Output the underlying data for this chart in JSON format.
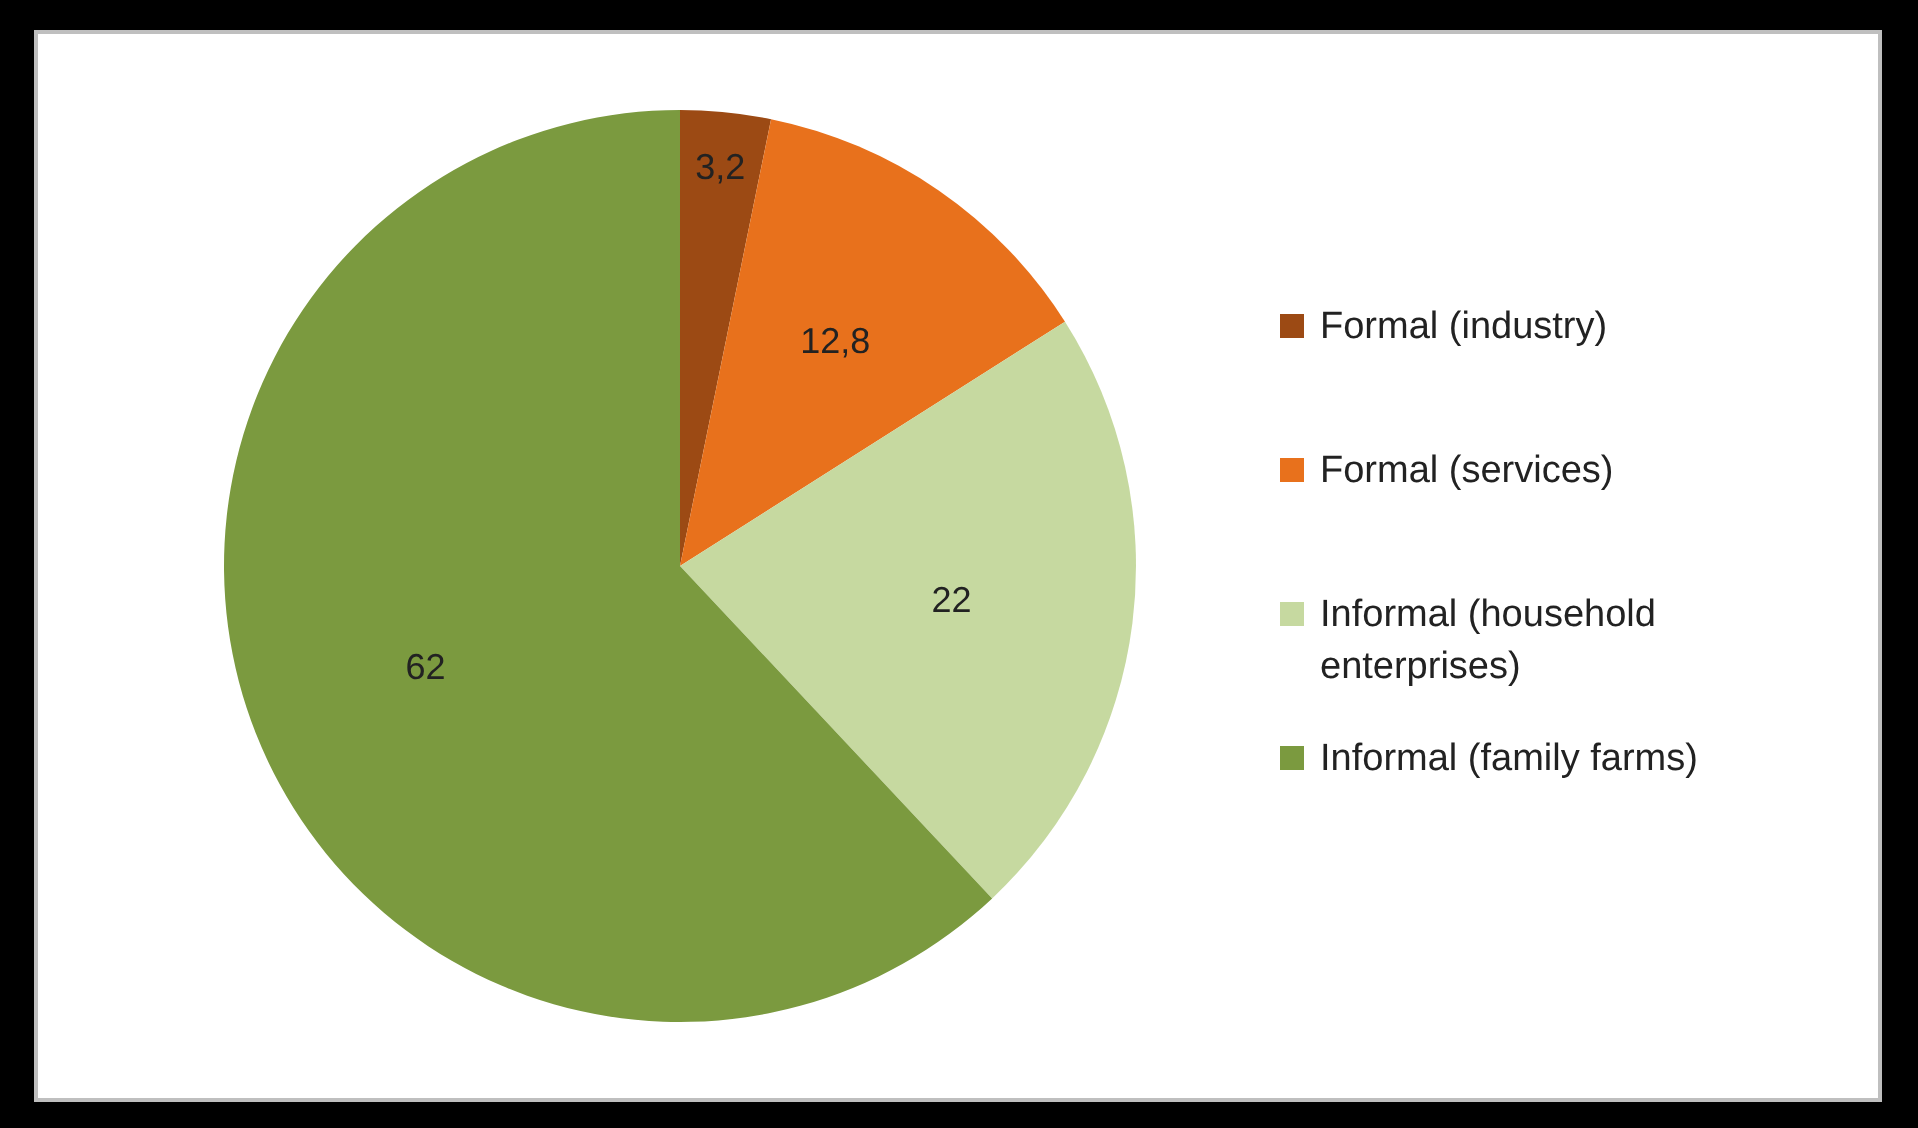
{
  "chart_data": {
    "type": "pie",
    "categories": [
      "Formal (industry)",
      "Formal (services)",
      "Informal (household enterprises)",
      "Informal (family farms)"
    ],
    "values": [
      3.2,
      12.8,
      22,
      62
    ],
    "colors": [
      "#9c4a14",
      "#e8711c",
      "#c6d9a0",
      "#7b9a3f"
    ],
    "value_labels": [
      "3,2",
      "12,8",
      "22",
      "62"
    ],
    "legend": "right"
  }
}
